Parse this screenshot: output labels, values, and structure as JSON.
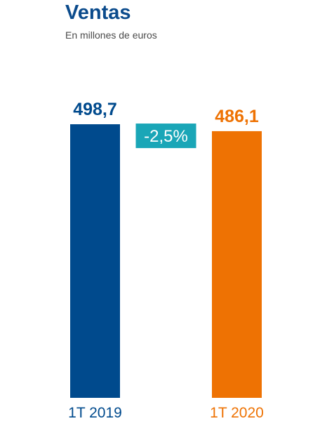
{
  "chart_data": {
    "type": "bar",
    "title": "Ventas",
    "subtitle": "En millones de euros",
    "categories": [
      "1T 2019",
      "1T 2020"
    ],
    "values": [
      498.7,
      486.1
    ],
    "value_labels": [
      "498,7",
      "486,1"
    ],
    "change_label": "-2,5%",
    "colors": {
      "title": "#0b4b8c",
      "bars": [
        "#004a8d",
        "#ee7203"
      ],
      "change_badge": "#1aa6b7"
    },
    "grid": false,
    "legend": "none"
  }
}
